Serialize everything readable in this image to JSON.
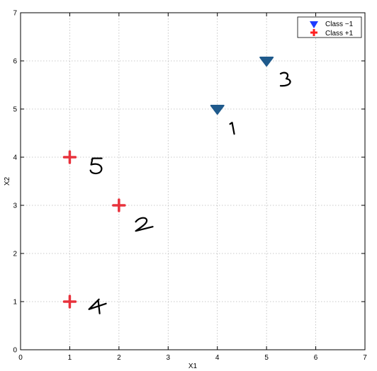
{
  "chart_data": {
    "type": "scatter",
    "title": "",
    "xlabel": "X1",
    "ylabel": "X2",
    "xlim": [
      0,
      7
    ],
    "ylim": [
      0,
      7
    ],
    "xticks": [
      "0",
      "1",
      "2",
      "3",
      "4",
      "5",
      "6",
      "7"
    ],
    "yticks": [
      "0",
      "1",
      "2",
      "3",
      "4",
      "5",
      "6",
      "7"
    ],
    "grid": true,
    "legend_position": "top-right",
    "series": [
      {
        "name": "Class −1",
        "marker": "triangle-down",
        "color": "#1f5a8c",
        "legend_color": "#1f3cff",
        "points": [
          {
            "x": 4,
            "y": 5
          },
          {
            "x": 5,
            "y": 6
          }
        ]
      },
      {
        "name": "Class +1",
        "marker": "plus",
        "color": "#e8323c",
        "legend_color": "#ff1f1f",
        "points": [
          {
            "x": 2,
            "y": 3
          },
          {
            "x": 1,
            "y": 1
          },
          {
            "x": 1,
            "y": 4
          }
        ]
      }
    ],
    "annotations": [
      {
        "text": "1",
        "x": 4.3,
        "y": 4.6
      },
      {
        "text": "3",
        "x": 5.4,
        "y": 5.6
      },
      {
        "text": "5",
        "x": 1.55,
        "y": 3.8
      },
      {
        "text": "2",
        "x": 2.5,
        "y": 2.6
      },
      {
        "text": "4",
        "x": 1.55,
        "y": 0.9
      }
    ]
  }
}
